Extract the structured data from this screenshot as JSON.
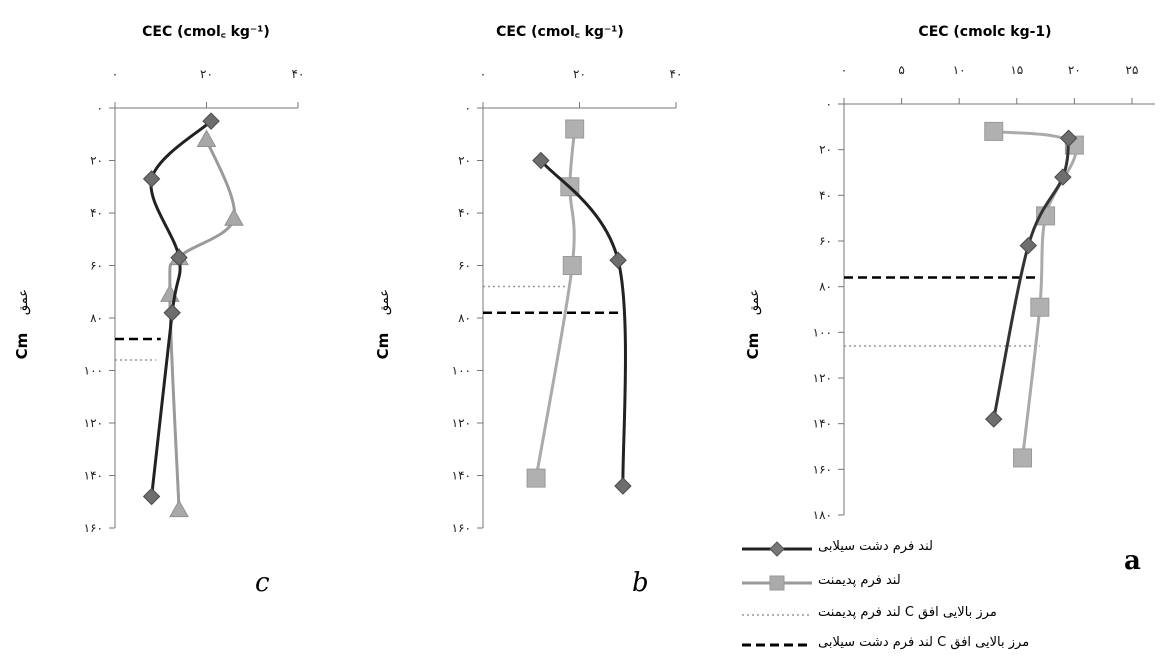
{
  "chart_data": [
    {
      "panel": "c",
      "type": "line",
      "xlabel": "CEC (cmol꜀ kg⁻¹)",
      "ylabel_latin": "Cm",
      "ylabel_persian": "عمق",
      "x_ticks": [
        "۰",
        "۲۰",
        "۴۰"
      ],
      "x_tick_values": [
        0,
        20,
        40
      ],
      "y_ticks": [
        "۰",
        "۲۰",
        "۴۰",
        "۶۰",
        "۸۰",
        "۱۰۰",
        "۱۲۰",
        "۱۴۰",
        "۱۶۰"
      ],
      "y_tick_values": [
        0,
        20,
        40,
        60,
        80,
        100,
        120,
        140,
        160
      ],
      "xlim": [
        0,
        40
      ],
      "ylim": [
        0,
        160
      ],
      "series": [
        {
          "name": "لند فرم دشت سیلابی",
          "color": "#222222",
          "marker": "diamond",
          "x": [
            21,
            8,
            14,
            12.5,
            8
          ],
          "y": [
            5,
            27,
            57,
            78,
            148
          ]
        },
        {
          "name": "لند فرم پدیمنت",
          "color": "#9a9a9a",
          "marker": "triangle",
          "x": [
            20,
            26,
            14,
            12,
            14
          ],
          "y": [
            12,
            42,
            57,
            71,
            153
          ]
        }
      ],
      "boundaries": [
        {
          "name": "مرز بالایی افق C لند فرم دشت سیلابی",
          "style": "dashed-black",
          "depth": 88,
          "x_end": 10
        },
        {
          "name": "مرز بالایی افق C لند فرم پدیمنت",
          "style": "dotted-gray",
          "depth": 96,
          "x_end": 9
        }
      ]
    },
    {
      "panel": "b",
      "type": "line",
      "xlabel": "CEC (cmol꜀ kg⁻¹)",
      "ylabel_latin": "Cm",
      "ylabel_persian": "عمق",
      "x_ticks": [
        "۰",
        "۲۰",
        "۴۰"
      ],
      "x_tick_values": [
        0,
        20,
        40
      ],
      "y_ticks": [
        "۰",
        "۲۰",
        "۴۰",
        "۶۰",
        "۸۰",
        "۱۰۰",
        "۱۲۰",
        "۱۴۰",
        "۱۶۰"
      ],
      "y_tick_values": [
        0,
        20,
        40,
        60,
        80,
        100,
        120,
        140,
        160
      ],
      "xlim": [
        0,
        40
      ],
      "ylim": [
        0,
        160
      ],
      "series": [
        {
          "name": "لند فرم دشت سیلابی",
          "color": "#222222",
          "marker": "diamond",
          "x": [
            12,
            28,
            29
          ],
          "y": [
            20,
            58,
            144
          ]
        },
        {
          "name": "لند فرم پدیمنت",
          "color": "#aaaaaa",
          "marker": "square",
          "x": [
            19,
            18,
            18.5,
            11
          ],
          "y": [
            8,
            30,
            60,
            141
          ]
        }
      ],
      "boundaries": [
        {
          "name": "مرز بالایی افق C لند فرم دشت سیلابی",
          "style": "dashed-black",
          "depth": 78,
          "x_end": 29
        },
        {
          "name": "مرز بالایی افق C لند فرم پدیمنت",
          "style": "dotted-gray",
          "depth": 68,
          "x_end": 17
        }
      ]
    },
    {
      "panel": "a",
      "type": "line",
      "xlabel": "CEC (cmolc kg-1)",
      "ylabel_latin": "Cm",
      "ylabel_persian": "عمق",
      "x_ticks": [
        "۰",
        "۵",
        "۱۰",
        "۱۵",
        "۲۰",
        "۲۵"
      ],
      "x_tick_values": [
        0,
        5,
        10,
        15,
        20,
        25
      ],
      "y_ticks": [
        "۰",
        "۲۰",
        "۴۰",
        "۶۰",
        "۸۰",
        "۱۰۰",
        "۱۲۰",
        "۱۴۰",
        "۱۶۰",
        "۱۸۰"
      ],
      "y_tick_values": [
        0,
        20,
        40,
        60,
        80,
        100,
        120,
        140,
        160,
        180
      ],
      "xlim": [
        0,
        27
      ],
      "ylim": [
        0,
        180
      ],
      "series": [
        {
          "name": "لند فرم دشت سیلابی",
          "color": "#333333",
          "marker": "diamond",
          "x": [
            19.5,
            19,
            16,
            13
          ],
          "y": [
            15,
            32,
            62,
            138
          ]
        },
        {
          "name": "لند فرم پدیمنت",
          "color": "#aaaaaa",
          "marker": "square",
          "x": [
            13,
            20,
            17.5,
            17,
            15.5
          ],
          "y": [
            12,
            18,
            49,
            89,
            155
          ]
        }
      ],
      "boundaries": [
        {
          "name": "مرز بالایی افق C لند فرم دشت سیلابی",
          "style": "dashed-black",
          "depth": 76,
          "x_end": 17
        },
        {
          "name": "مرز بالایی افق C لند فرم پدیمنت",
          "style": "dotted-gray",
          "depth": 106,
          "x_end": 17
        }
      ]
    }
  ],
  "panel_letters": [
    "c",
    "b",
    "a"
  ],
  "legend": [
    {
      "label": "لند فرم دشت سیلابی",
      "style": "series-black"
    },
    {
      "label": "لند فرم پدیمنت",
      "style": "series-gray"
    },
    {
      "label": "مرز بالایی افق C لند فرم پدیمنت",
      "style": "dotted-gray"
    },
    {
      "label": "مرز بالایی افق C لند فرم دشت سیلابی",
      "style": "dashed-black"
    }
  ]
}
